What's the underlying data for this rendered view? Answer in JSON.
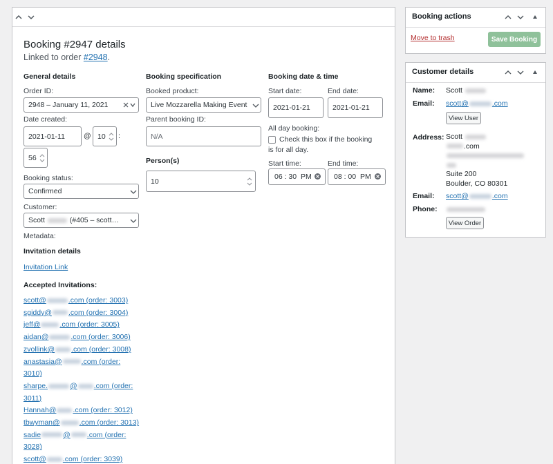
{
  "main": {
    "title": "Booking #2947 details",
    "linked_prefix": "Linked to order",
    "linked_order": "#2948",
    "linked_suffix": "."
  },
  "general": {
    "heading": "General details",
    "order_id_label": "Order ID:",
    "order_id": "2948 – January 11, 2021",
    "date_created_label": "Date created:",
    "date": "2021-01-11",
    "at": "@",
    "hour": "10",
    "colon": ":",
    "minute": "56",
    "status_label": "Booking status:",
    "status": "Confirmed",
    "customer_label": "Customer:",
    "customer_first": "Scott",
    "customer_rest": "(#405 – scott…",
    "metadata_label": "Metadata:"
  },
  "invitation": {
    "heading": "Invitation details",
    "link": "Invitation Link",
    "accepted_heading": "Accepted Invitations:",
    "items": [
      {
        "parts": [
          "scott@",
          ".com (order: 3003)"
        ]
      },
      {
        "parts": [
          "sgiddy@",
          ".com (order: 3004)"
        ]
      },
      {
        "parts": [
          "jeff@",
          ".com (order: 3005)"
        ]
      },
      {
        "parts": [
          "aidan@",
          ".com (order: 3006)"
        ]
      },
      {
        "parts": [
          "zvollink@",
          ".com (order: 3008)"
        ]
      },
      {
        "parts": [
          "anastasia@",
          ".com (order: 3010)"
        ]
      },
      {
        "parts": [
          "sharpe.",
          "@",
          ".com (order: 3011)"
        ]
      },
      {
        "parts": [
          "Hannah@",
          ".com (order: 3012)"
        ]
      },
      {
        "parts": [
          "tbwyman@",
          ".com (order: 3013)"
        ]
      },
      {
        "parts": [
          "sadie",
          "@",
          ".com (order: 3028)"
        ]
      },
      {
        "parts": [
          "scott@",
          ".com (order: 3039)"
        ]
      }
    ]
  },
  "spec": {
    "heading": "Booking specification",
    "product_label": "Booked product:",
    "product": "Live Mozzarella Making Event",
    "parent_label": "Parent booking ID:",
    "parent_placeholder": "N/A",
    "persons_label": "Person(s)",
    "persons": "10"
  },
  "datetime": {
    "heading": "Booking date & time",
    "start_date_label": "Start date:",
    "start_date": "2021-01-21",
    "end_date_label": "End date:",
    "end_date": "2021-01-21",
    "all_day_label": "All day booking:",
    "all_day_text": "Check this box if the booking is for all day.",
    "start_time_label": "Start time:",
    "start_time": "06 : 30  PM",
    "end_time_label": "End time:",
    "end_time": "08 : 00  PM"
  },
  "actions": {
    "title": "Booking actions",
    "trash": "Move to trash",
    "save": "Save Booking"
  },
  "customer_details": {
    "title": "Customer details",
    "name_label": "Name:",
    "name": "Scott",
    "email_label": "Email:",
    "email_prefix": "scott@",
    "email_suffix": ".com",
    "view_user": "View User",
    "address_label": "Address:",
    "address_name": "Scott",
    "address_domain": ".com",
    "address_suite": "Suite 200",
    "address_city": "Boulder, CO 80301",
    "email2_label": "Email:",
    "email2_prefix": "scott@",
    "email2_suffix": ".com",
    "phone_label": "Phone:",
    "view_order": "View Order"
  }
}
